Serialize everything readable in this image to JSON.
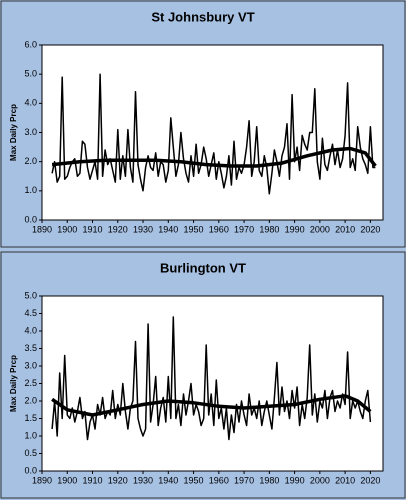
{
  "chart_data": [
    {
      "type": "line",
      "title": "St Johnsbury VT",
      "y_label": "Max Daily Prcp",
      "x": [
        1894,
        1895,
        1896,
        1897,
        1898,
        1899,
        1900,
        1901,
        1902,
        1903,
        1904,
        1905,
        1906,
        1907,
        1908,
        1909,
        1910,
        1911,
        1912,
        1913,
        1914,
        1915,
        1916,
        1917,
        1918,
        1919,
        1920,
        1921,
        1922,
        1923,
        1924,
        1925,
        1926,
        1927,
        1928,
        1929,
        1930,
        1931,
        1932,
        1933,
        1934,
        1935,
        1936,
        1937,
        1938,
        1939,
        1940,
        1941,
        1942,
        1943,
        1944,
        1945,
        1946,
        1947,
        1948,
        1949,
        1950,
        1951,
        1952,
        1953,
        1954,
        1955,
        1956,
        1957,
        1958,
        1959,
        1960,
        1961,
        1962,
        1963,
        1964,
        1965,
        1966,
        1967,
        1968,
        1969,
        1970,
        1971,
        1972,
        1973,
        1974,
        1975,
        1976,
        1977,
        1978,
        1979,
        1980,
        1981,
        1982,
        1983,
        1984,
        1985,
        1986,
        1987,
        1988,
        1989,
        1990,
        1991,
        1992,
        1993,
        1994,
        1995,
        1996,
        1997,
        1998,
        1999,
        2000,
        2001,
        2002,
        2003,
        2004,
        2005,
        2006,
        2007,
        2008,
        2009,
        2010,
        2011,
        2012,
        2013,
        2014,
        2015,
        2016,
        2017,
        2018,
        2019,
        2020,
        2021,
        2022
      ],
      "series": [
        {
          "color": "#000000",
          "width": 1.5,
          "values": [
            1.6,
            2.0,
            1.3,
            1.5,
            4.9,
            1.4,
            1.5,
            1.8,
            2.0,
            2.1,
            1.5,
            1.6,
            2.7,
            2.6,
            1.8,
            1.4,
            1.7,
            2.0,
            1.4,
            5.0,
            1.5,
            2.4,
            1.9,
            2.1,
            1.7,
            1.3,
            3.1,
            1.4,
            2.2,
            1.5,
            3.1,
            1.8,
            1.3,
            4.4,
            1.9,
            1.4,
            1.0,
            1.8,
            2.2,
            1.8,
            1.7,
            2.3,
            1.5,
            2.0,
            1.9,
            1.3,
            1.7,
            3.5,
            2.5,
            1.5,
            1.9,
            3.0,
            2.1,
            1.6,
            1.3,
            2.2,
            1.5,
            2.6,
            1.6,
            1.9,
            2.5,
            2.1,
            1.5,
            1.9,
            2.3,
            1.4,
            2.0,
            1.6,
            1.1,
            1.5,
            2.2,
            1.2,
            2.7,
            1.4,
            1.8,
            1.6,
            1.9,
            2.5,
            3.4,
            1.5,
            2.0,
            3.2,
            1.7,
            1.5,
            2.2,
            1.8,
            0.9,
            1.6,
            2.4,
            2.0,
            1.5,
            2.2,
            2.5,
            3.3,
            1.4,
            4.3,
            2.0,
            2.5,
            1.7,
            2.9,
            2.6,
            2.4,
            3.0,
            3.0,
            4.5,
            2.0,
            1.4,
            2.8,
            1.9,
            1.7,
            2.2,
            2.6,
            1.9,
            2.4,
            1.8,
            2.1,
            2.9,
            4.7,
            1.8,
            2.1,
            1.7,
            3.2,
            2.5,
            2.1,
            1.9,
            1.6,
            3.2,
            1.8,
            1.8
          ]
        },
        {
          "color": "#000000",
          "width": 3.5,
          "x": [
            1894,
            1905,
            1915,
            1925,
            1935,
            1945,
            1955,
            1965,
            1975,
            1985,
            1995,
            2005,
            2012,
            2018,
            2022
          ],
          "values": [
            1.9,
            2.0,
            2.05,
            2.05,
            2.05,
            2.0,
            1.9,
            1.85,
            1.85,
            1.95,
            2.2,
            2.4,
            2.45,
            2.3,
            1.85
          ]
        }
      ],
      "xlim": [
        1890,
        2025
      ],
      "xticks": [
        1890,
        1900,
        1910,
        1920,
        1930,
        1940,
        1950,
        1960,
        1970,
        1980,
        1990,
        2000,
        2010,
        2020
      ],
      "ylim": [
        0,
        6
      ],
      "yticks": [
        {
          "value": 0,
          "label": "0.0"
        },
        {
          "value": 1,
          "label": "1.0"
        },
        {
          "value": 2,
          "label": "2.0"
        },
        {
          "value": 3,
          "label": "3.0"
        },
        {
          "value": 4,
          "label": "4.0"
        },
        {
          "value": 5,
          "label": "5.0"
        },
        {
          "value": 6,
          "label": "6.0"
        }
      ]
    },
    {
      "type": "line",
      "title": "Burlington VT",
      "y_label": "Max Daily Prcp",
      "x": [
        1894,
        1895,
        1896,
        1897,
        1898,
        1899,
        1900,
        1901,
        1902,
        1903,
        1904,
        1905,
        1906,
        1907,
        1908,
        1909,
        1910,
        1911,
        1912,
        1913,
        1914,
        1915,
        1916,
        1917,
        1918,
        1919,
        1920,
        1921,
        1922,
        1923,
        1924,
        1925,
        1926,
        1927,
        1928,
        1929,
        1930,
        1931,
        1932,
        1933,
        1934,
        1935,
        1936,
        1937,
        1938,
        1939,
        1940,
        1941,
        1942,
        1943,
        1944,
        1945,
        1946,
        1947,
        1948,
        1949,
        1950,
        1951,
        1952,
        1953,
        1954,
        1955,
        1956,
        1957,
        1958,
        1959,
        1960,
        1961,
        1962,
        1963,
        1964,
        1965,
        1966,
        1967,
        1968,
        1969,
        1970,
        1971,
        1972,
        1973,
        1974,
        1975,
        1976,
        1977,
        1978,
        1979,
        1980,
        1981,
        1982,
        1983,
        1984,
        1985,
        1986,
        1987,
        1988,
        1989,
        1990,
        1991,
        1992,
        1993,
        1994,
        1995,
        1996,
        1997,
        1998,
        1999,
        2000,
        2001,
        2002,
        2003,
        2004,
        2005,
        2006,
        2007,
        2008,
        2009,
        2010,
        2011,
        2012,
        2013,
        2014,
        2015,
        2016,
        2017,
        2018,
        2019,
        2020
      ],
      "series": [
        {
          "color": "#000000",
          "width": 1.5,
          "values": [
            1.2,
            2.0,
            1.0,
            2.8,
            1.5,
            3.3,
            1.6,
            1.5,
            1.8,
            1.4,
            1.7,
            2.1,
            1.5,
            1.7,
            0.9,
            1.4,
            1.6,
            1.2,
            1.9,
            1.6,
            2.1,
            1.5,
            1.7,
            1.6,
            2.3,
            1.5,
            1.9,
            1.6,
            2.5,
            1.7,
            1.2,
            1.8,
            2.0,
            3.7,
            1.5,
            1.2,
            1.0,
            1.2,
            4.2,
            1.4,
            1.9,
            2.7,
            1.3,
            1.8,
            2.1,
            1.4,
            2.7,
            1.5,
            4.4,
            1.5,
            1.9,
            1.3,
            2.2,
            1.6,
            2.0,
            2.5,
            1.6,
            1.9,
            1.7,
            1.3,
            1.5,
            3.6,
            1.6,
            2.2,
            1.3,
            2.6,
            1.5,
            1.8,
            1.2,
            1.8,
            0.9,
            1.6,
            1.1,
            1.9,
            1.4,
            2.0,
            1.6,
            1.3,
            2.2,
            1.6,
            1.8,
            1.5,
            2.0,
            1.3,
            1.7,
            2.0,
            1.6,
            1.2,
            2.1,
            3.1,
            1.6,
            2.4,
            1.7,
            2.0,
            1.5,
            2.3,
            1.8,
            2.4,
            1.3,
            1.9,
            1.5,
            2.1,
            3.6,
            1.6,
            2.2,
            1.4,
            2.0,
            1.8,
            2.3,
            1.5,
            2.1,
            2.3,
            1.7,
            2.0,
            1.8,
            2.2,
            1.9,
            3.4,
            1.5,
            2.0,
            1.8,
            2.0,
            1.7,
            1.5,
            2.0,
            2.3,
            1.4
          ]
        },
        {
          "color": "#000000",
          "width": 3.5,
          "x": [
            1894,
            1900,
            1910,
            1920,
            1930,
            1940,
            1950,
            1960,
            1970,
            1980,
            1990,
            2000,
            2010,
            2015,
            2020
          ],
          "values": [
            2.05,
            1.75,
            1.6,
            1.75,
            1.9,
            2.0,
            1.95,
            1.85,
            1.8,
            1.85,
            1.9,
            2.05,
            2.15,
            2.0,
            1.7
          ]
        }
      ],
      "xlim": [
        1890,
        2025
      ],
      "xticks": [
        1890,
        1900,
        1910,
        1920,
        1930,
        1940,
        1950,
        1960,
        1970,
        1980,
        1990,
        2000,
        2010,
        2020
      ],
      "ylim": [
        0,
        5
      ],
      "yticks": [
        {
          "value": 0,
          "label": "0.0"
        },
        {
          "value": 0.5,
          "label": "0.5"
        },
        {
          "value": 1,
          "label": "1.0"
        },
        {
          "value": 1.5,
          "label": "1.5"
        },
        {
          "value": 2,
          "label": "2.0"
        },
        {
          "value": 2.5,
          "label": "2.5"
        },
        {
          "value": 3,
          "label": "3.0"
        },
        {
          "value": 3.5,
          "label": "3.5"
        },
        {
          "value": 4,
          "label": "4.0"
        },
        {
          "value": 4.5,
          "label": "4.5"
        },
        {
          "value": 5,
          "label": "5.0"
        }
      ]
    }
  ]
}
